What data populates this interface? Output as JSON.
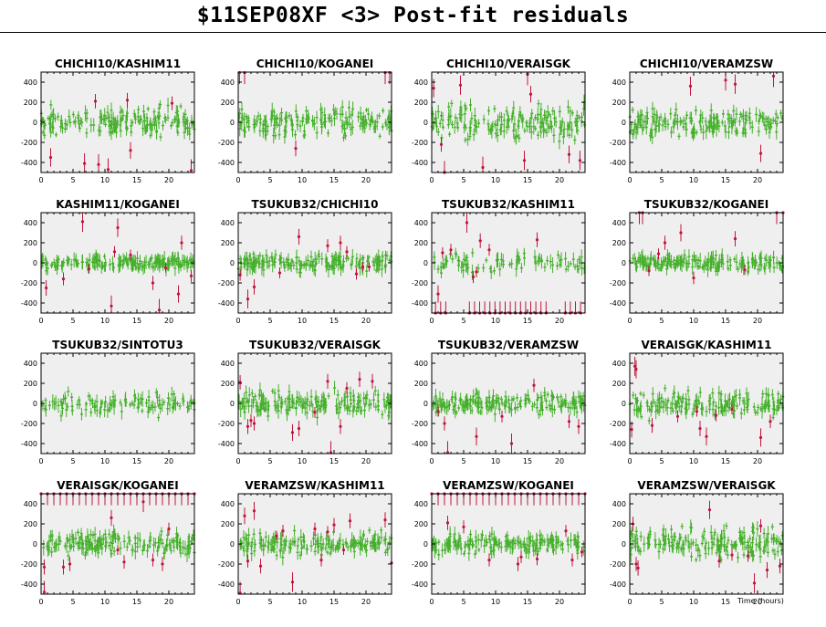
{
  "title": "$11SEP08XF <3> Post-fit residuals",
  "xlabel": "Time (hours)",
  "colors": {
    "good": "#44b02a",
    "outlier": "#c0143c",
    "panel": "#efefef",
    "frame": "#000000"
  },
  "axes": {
    "xlim": [
      0,
      24
    ],
    "ylim": [
      -500,
      500
    ],
    "xticks": [
      0,
      5,
      10,
      15,
      20
    ],
    "yticks": [
      -400,
      -200,
      0,
      200,
      400
    ],
    "grid": false
  },
  "chart_data": [
    {
      "type": "scatter",
      "title": "CHICHI10/KASHIM11",
      "scatter_level": 65,
      "outliers": [
        [
          1.5,
          -350
        ],
        [
          6.8,
          -410
        ],
        [
          9,
          -420
        ],
        [
          10.5,
          -470
        ],
        [
          8.5,
          210
        ],
        [
          13.5,
          220
        ],
        [
          14,
          -280
        ],
        [
          20.5,
          190
        ],
        [
          23.5,
          -480
        ]
      ]
    },
    {
      "type": "scatter",
      "title": "CHICHI10/KOGANEI",
      "scatter_level": 65,
      "outliers": [
        [
          0.2,
          495
        ],
        [
          1,
          495
        ],
        [
          23,
          495
        ],
        [
          23.7,
          495
        ],
        [
          9,
          -260
        ]
      ]
    },
    {
      "type": "scatter",
      "title": "CHICHI10/VERAISGK",
      "scatter_level": 80,
      "outliers": [
        [
          0.3,
          340
        ],
        [
          1.5,
          -220
        ],
        [
          2,
          -500
        ],
        [
          4.5,
          370
        ],
        [
          8,
          -450
        ],
        [
          14.5,
          -380
        ],
        [
          15,
          480
        ],
        [
          15.5,
          280
        ],
        [
          21.5,
          -320
        ],
        [
          23.2,
          -380
        ]
      ]
    },
    {
      "type": "scatter",
      "title": "CHICHI10/VERAMZSW",
      "scatter_level": 65,
      "outliers": [
        [
          9.5,
          360
        ],
        [
          15,
          420
        ],
        [
          16.5,
          380
        ],
        [
          20.5,
          -310
        ],
        [
          22.5,
          460
        ]
      ]
    },
    {
      "type": "scatter",
      "title": "KASHIM11/KOGANEI",
      "scatter_level": 30,
      "outliers": [
        [
          0.8,
          -250
        ],
        [
          3.5,
          -160
        ],
        [
          6.5,
          410
        ],
        [
          7.5,
          -60
        ],
        [
          11,
          -430
        ],
        [
          11.5,
          110
        ],
        [
          12,
          350
        ],
        [
          14,
          80
        ],
        [
          17.5,
          -200
        ],
        [
          18.5,
          -470
        ],
        [
          19.5,
          -50
        ],
        [
          21.5,
          -310
        ],
        [
          22,
          200
        ],
        [
          23.5,
          -130
        ]
      ]
    },
    {
      "type": "scatter",
      "title": "TSUKUB32/CHICHI10",
      "scatter_level": 40,
      "outliers": [
        [
          0.3,
          -120
        ],
        [
          1.5,
          -360
        ],
        [
          2.5,
          -240
        ],
        [
          6.5,
          -100
        ],
        [
          9.5,
          260
        ],
        [
          14,
          170
        ],
        [
          16,
          200
        ],
        [
          17,
          110
        ],
        [
          18.5,
          -110
        ],
        [
          19.5,
          -40
        ],
        [
          20.5,
          -40
        ]
      ]
    },
    {
      "type": "scatter",
      "title": "TSUKUB32/KASHIM11",
      "scatter_level": 45,
      "density": 0.55,
      "outliers": [
        [
          1,
          -310
        ],
        [
          1.7,
          100
        ],
        [
          3,
          130
        ],
        [
          5.5,
          400
        ],
        [
          6.5,
          -140
        ],
        [
          7,
          -90
        ],
        [
          7.6,
          220
        ],
        [
          9,
          130
        ],
        [
          16.5,
          230
        ],
        [
          0.6,
          -500
        ],
        [
          1.4,
          -500
        ],
        [
          2.2,
          -500
        ],
        [
          5.9,
          -500
        ],
        [
          6.7,
          -500
        ],
        [
          7.5,
          -500
        ],
        [
          8.3,
          -500
        ],
        [
          9.1,
          -500
        ],
        [
          9.9,
          -500
        ],
        [
          10.7,
          -500
        ],
        [
          11.5,
          -500
        ],
        [
          12.3,
          -500
        ],
        [
          13.1,
          -500
        ],
        [
          13.9,
          -500
        ],
        [
          14.7,
          -500
        ],
        [
          15.5,
          -500
        ],
        [
          16.3,
          -500
        ],
        [
          17.1,
          -500
        ],
        [
          17.9,
          -500
        ],
        [
          20.9,
          -500
        ],
        [
          21.7,
          -500
        ],
        [
          22.5,
          -500
        ],
        [
          23.3,
          -500
        ]
      ]
    },
    {
      "type": "scatter",
      "title": "TSUKUB32/KOGANEI",
      "scatter_level": 35,
      "outliers": [
        [
          1.5,
          500
        ],
        [
          2,
          500
        ],
        [
          3,
          -80
        ],
        [
          4.5,
          90
        ],
        [
          5.5,
          200
        ],
        [
          8,
          300
        ],
        [
          10,
          -150
        ],
        [
          16.5,
          240
        ],
        [
          18,
          -70
        ],
        [
          23,
          500
        ],
        [
          24,
          500
        ]
      ]
    },
    {
      "type": "scatter",
      "title": "TSUKUB32/SINTOTU3",
      "scatter_level": 55,
      "density": 0.75,
      "outliers": []
    },
    {
      "type": "scatter",
      "title": "TSUKUB32/VERAISGK",
      "scatter_level": 55,
      "outliers": [
        [
          0.3,
          210
        ],
        [
          1.5,
          -230
        ],
        [
          2,
          -170
        ],
        [
          2.5,
          -200
        ],
        [
          8.5,
          -290
        ],
        [
          9.5,
          -250
        ],
        [
          12,
          -90
        ],
        [
          14,
          220
        ],
        [
          16,
          -230
        ],
        [
          17,
          150
        ],
        [
          19,
          240
        ],
        [
          21,
          220
        ],
        [
          14.5,
          -490
        ]
      ]
    },
    {
      "type": "scatter",
      "title": "TSUKUB32/VERAMZSW",
      "scatter_level": 45,
      "outliers": [
        [
          1,
          -80
        ],
        [
          2,
          -200
        ],
        [
          2.5,
          -490
        ],
        [
          7,
          -330
        ],
        [
          11,
          -130
        ],
        [
          12.5,
          -400
        ],
        [
          16,
          180
        ],
        [
          21.5,
          -180
        ],
        [
          23,
          -230
        ]
      ]
    },
    {
      "type": "scatter",
      "title": "VERAISGK/KASHIM11",
      "scatter_level": 60,
      "outliers": [
        [
          0.3,
          -260
        ],
        [
          0.8,
          370
        ],
        [
          1,
          340
        ],
        [
          3.5,
          -220
        ],
        [
          7.5,
          -130
        ],
        [
          10.5,
          -80
        ],
        [
          11,
          -250
        ],
        [
          12,
          -330
        ],
        [
          13.5,
          -120
        ],
        [
          16,
          -60
        ],
        [
          20.5,
          -340
        ],
        [
          22,
          -180
        ]
      ]
    },
    {
      "type": "scatter",
      "title": "VERAISGK/KOGANEI",
      "scatter_level": 50,
      "outliers": [
        [
          0,
          500
        ],
        [
          1,
          500
        ],
        [
          2,
          500
        ],
        [
          3,
          500
        ],
        [
          4,
          500
        ],
        [
          5,
          500
        ],
        [
          6,
          500
        ],
        [
          7,
          500
        ],
        [
          8,
          500
        ],
        [
          9,
          500
        ],
        [
          10,
          500
        ],
        [
          11,
          500
        ],
        [
          12,
          500
        ],
        [
          13,
          500
        ],
        [
          14,
          500
        ],
        [
          15,
          500
        ],
        [
          16,
          500
        ],
        [
          17,
          500
        ],
        [
          18,
          500
        ],
        [
          19,
          500
        ],
        [
          20,
          500
        ],
        [
          21,
          500
        ],
        [
          22,
          500
        ],
        [
          23,
          500
        ],
        [
          24,
          500
        ],
        [
          0.5,
          -230
        ],
        [
          3.5,
          -230
        ],
        [
          4.5,
          -200
        ],
        [
          11,
          260
        ],
        [
          12,
          -60
        ],
        [
          13,
          -180
        ],
        [
          16,
          420
        ],
        [
          17.5,
          -160
        ],
        [
          19,
          -200
        ],
        [
          20,
          150
        ],
        [
          0.5,
          -480
        ]
      ]
    },
    {
      "type": "scatter",
      "title": "VERAMZSW/KASHIM11",
      "scatter_level": 55,
      "outliers": [
        [
          1,
          280
        ],
        [
          1.5,
          -170
        ],
        [
          2.5,
          330
        ],
        [
          3.5,
          -220
        ],
        [
          6,
          80
        ],
        [
          7,
          130
        ],
        [
          8.5,
          -380
        ],
        [
          12,
          150
        ],
        [
          13,
          -160
        ],
        [
          14,
          120
        ],
        [
          15,
          190
        ],
        [
          16.5,
          -60
        ],
        [
          17.5,
          230
        ],
        [
          23,
          240
        ],
        [
          24,
          -190
        ],
        [
          0.3,
          -490
        ]
      ]
    },
    {
      "type": "scatter",
      "title": "VERAMZSW/KOGANEI",
      "scatter_level": 45,
      "outliers": [
        [
          0,
          500
        ],
        [
          1,
          500
        ],
        [
          2,
          500
        ],
        [
          3,
          500
        ],
        [
          4,
          500
        ],
        [
          5,
          500
        ],
        [
          6,
          500
        ],
        [
          7,
          500
        ],
        [
          8,
          500
        ],
        [
          9,
          500
        ],
        [
          10,
          500
        ],
        [
          11,
          500
        ],
        [
          12,
          500
        ],
        [
          13,
          500
        ],
        [
          14,
          500
        ],
        [
          15,
          500
        ],
        [
          16,
          500
        ],
        [
          17,
          500
        ],
        [
          18,
          500
        ],
        [
          19,
          500
        ],
        [
          20,
          500
        ],
        [
          21,
          500
        ],
        [
          22,
          500
        ],
        [
          23,
          500
        ],
        [
          24,
          500
        ],
        [
          2.5,
          210
        ],
        [
          5,
          170
        ],
        [
          9,
          -160
        ],
        [
          13.5,
          -200
        ],
        [
          14,
          -130
        ],
        [
          16.5,
          -150
        ],
        [
          21,
          130
        ],
        [
          22,
          -160
        ],
        [
          23.5,
          -80
        ]
      ]
    },
    {
      "type": "scatter",
      "title": "VERAMZSW/VERAISGK",
      "scatter_level": 70,
      "outliers": [
        [
          0.5,
          200
        ],
        [
          1,
          -200
        ],
        [
          1.3,
          -240
        ],
        [
          12.5,
          340
        ],
        [
          14,
          -170
        ],
        [
          16,
          -110
        ],
        [
          18.5,
          -120
        ],
        [
          19.5,
          -390
        ],
        [
          20.5,
          180
        ],
        [
          21.5,
          -260
        ],
        [
          23.5,
          -220
        ]
      ]
    }
  ]
}
